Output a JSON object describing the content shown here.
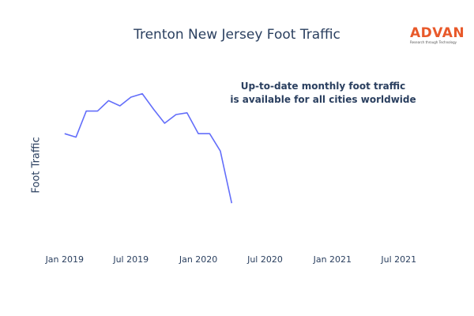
{
  "chart_title": "Trenton New Jersey Foot Traffic",
  "logo": {
    "word": "ADVAN",
    "tagline": "Research through Technology",
    "color": "#e8592a"
  },
  "annotation": {
    "line1": "Up-to-date monthly foot traffic",
    "line2": "is available for all cities worldwide"
  },
  "chart_data": {
    "type": "line",
    "title": "Trenton New Jersey Foot Traffic",
    "xlabel": "",
    "ylabel": "Foot Traffic",
    "y_tick_labels_shown": false,
    "grid": false,
    "x_range": [
      "2018-11-15",
      "2021-09-15"
    ],
    "y_range": [
      0,
      100
    ],
    "x_ticks": [
      {
        "date": "2019-01-01",
        "label": "Jan 2019"
      },
      {
        "date": "2019-07-01",
        "label": "Jul 2019"
      },
      {
        "date": "2020-01-01",
        "label": "Jan 2020"
      },
      {
        "date": "2020-07-01",
        "label": "Jul 2020"
      },
      {
        "date": "2021-01-01",
        "label": "Jan 2021"
      },
      {
        "date": "2021-07-01",
        "label": "Jul 2021"
      }
    ],
    "series": [
      {
        "color": "#636efa",
        "points": [
          {
            "x": "2019-01-01",
            "y": 64
          },
          {
            "x": "2019-02-01",
            "y": 62
          },
          {
            "x": "2019-03-01",
            "y": 77
          },
          {
            "x": "2019-04-01",
            "y": 77
          },
          {
            "x": "2019-05-01",
            "y": 83
          },
          {
            "x": "2019-06-01",
            "y": 80
          },
          {
            "x": "2019-07-01",
            "y": 85
          },
          {
            "x": "2019-08-01",
            "y": 87
          },
          {
            "x": "2019-09-01",
            "y": 78
          },
          {
            "x": "2019-10-01",
            "y": 70
          },
          {
            "x": "2019-11-01",
            "y": 75
          },
          {
            "x": "2019-12-01",
            "y": 76
          },
          {
            "x": "2020-01-01",
            "y": 64
          },
          {
            "x": "2020-02-01",
            "y": 64
          },
          {
            "x": "2020-03-01",
            "y": 54
          },
          {
            "x": "2020-04-01",
            "y": 24
          }
        ]
      }
    ]
  }
}
